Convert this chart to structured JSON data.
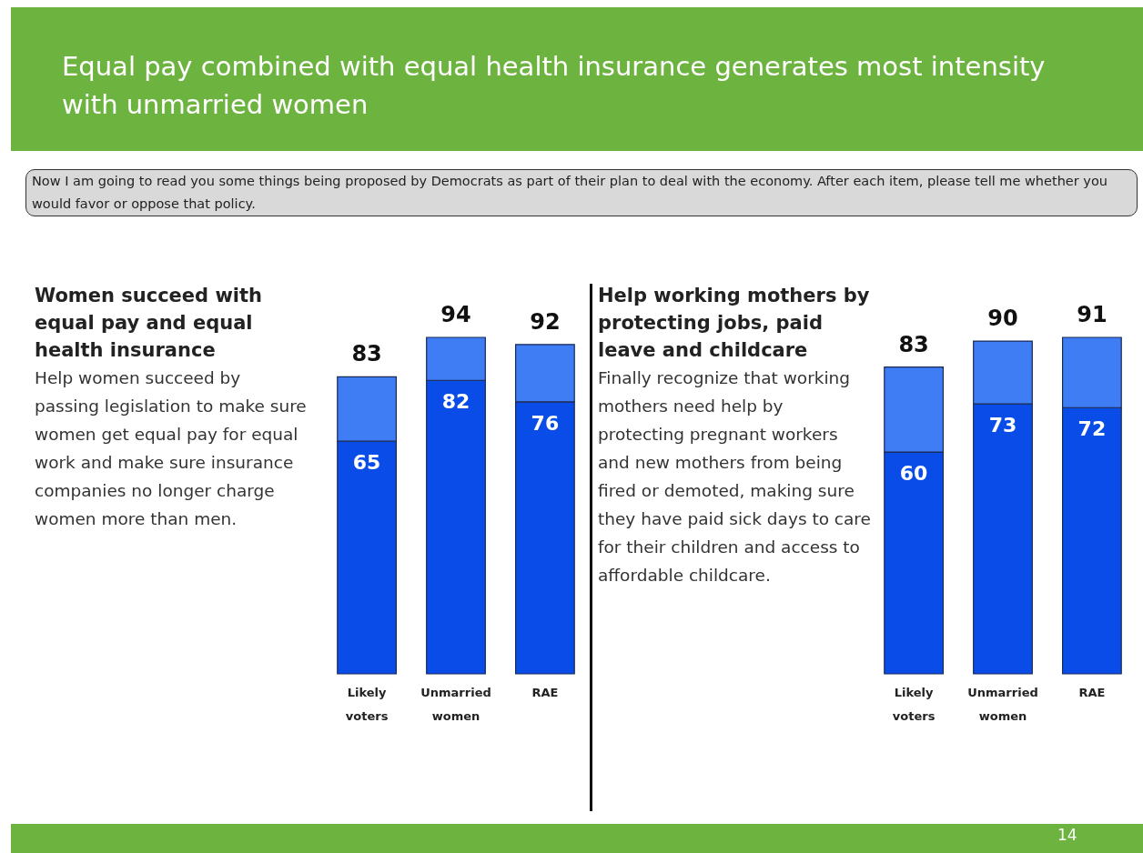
{
  "chart_data": [
    {
      "type": "other",
      "title": "Equal pay combined with equal health insurance generates most intensity with unmarried women",
      "annotations": [
        "Now I am going to read you some things being proposed by Democrats as part of their plan to deal with the economy. After each item, please tell me whether  you would favor or oppose that policy.",
        "14"
      ]
    },
    {
      "type": "bar",
      "title": "Women succeed with equal pay and equal health insurance",
      "subtitle": "Help women succeed by passing legislation to make sure women get equal pay for equal work and make sure insurance companies no longer charge women more than men.",
      "categories": [
        "Likely voters",
        "Unmarried women",
        "RAE"
      ],
      "stacked": true,
      "tick_labels": "x",
      "series": [
        {
          "color": "#0a4ce8",
          "values": [
            65,
            82,
            76
          ],
          "value_labels": [
            "65",
            "82",
            "76"
          ]
        },
        {
          "color": "#3f7df4",
          "values": [
            18,
            12,
            16
          ]
        }
      ],
      "totals": [
        "83",
        "94",
        "92"
      ]
    },
    {
      "type": "bar",
      "title": "Help working mothers by protecting jobs, paid leave and childcare",
      "subtitle": "Finally recognize that working mothers need help by protecting pregnant workers and new mothers from being fired or demoted, making sure they have paid sick days to care for their children and access to affordable childcare.",
      "categories": [
        "Likely voters",
        "Unmarried women",
        "RAE"
      ],
      "stacked": true,
      "tick_labels": "x",
      "series": [
        {
          "color": "#0a4ce8",
          "values": [
            60,
            73,
            72
          ],
          "value_labels": [
            "60",
            "73",
            "72"
          ]
        },
        {
          "color": "#3f7df4",
          "values": [
            23,
            17,
            19
          ]
        }
      ],
      "totals": [
        "83",
        "90",
        "91"
      ]
    }
  ]
}
